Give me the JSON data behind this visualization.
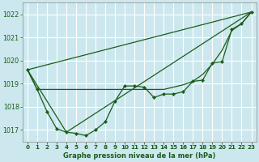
{
  "background_color": "#cce8ee",
  "grid_color": "#ffffff",
  "line_color": "#1a5c1a",
  "title": "Graphe pression niveau de la mer (hPa)",
  "xlim": [
    -0.5,
    23.5
  ],
  "ylim": [
    1016.5,
    1022.5
  ],
  "yticks": [
    1017,
    1018,
    1019,
    1020,
    1021,
    1022
  ],
  "xticks": [
    0,
    1,
    2,
    3,
    4,
    5,
    6,
    7,
    8,
    9,
    10,
    11,
    12,
    13,
    14,
    15,
    16,
    17,
    18,
    19,
    20,
    21,
    22,
    23
  ],
  "series1_x": [
    0,
    1,
    2,
    3,
    4,
    5,
    6,
    7,
    8,
    9,
    10,
    11,
    12,
    13,
    14,
    15,
    16,
    17,
    18,
    19,
    20,
    21,
    22,
    23
  ],
  "series1_y": [
    1019.6,
    1018.75,
    1017.8,
    1017.05,
    1016.9,
    1016.85,
    1016.75,
    1017.0,
    1017.35,
    1018.25,
    1018.9,
    1018.9,
    1018.85,
    1018.4,
    1018.55,
    1018.55,
    1018.65,
    1019.1,
    1019.15,
    1019.9,
    1019.95,
    1021.35,
    1021.6,
    1022.1
  ],
  "series2_x": [
    0,
    1,
    2,
    3,
    4,
    5,
    6,
    7,
    8,
    9,
    10,
    11,
    12,
    13,
    14,
    15,
    16,
    17,
    18,
    19,
    20,
    21,
    22,
    23
  ],
  "series2_y": [
    1019.6,
    1018.75,
    1018.75,
    1018.75,
    1018.75,
    1018.75,
    1018.75,
    1018.75,
    1018.75,
    1018.75,
    1018.75,
    1018.75,
    1018.75,
    1018.75,
    1018.75,
    1018.85,
    1018.95,
    1019.1,
    1019.4,
    1019.85,
    1020.45,
    1021.3,
    1021.6,
    1022.1
  ],
  "line3_x": [
    0,
    23
  ],
  "line3_y": [
    1019.6,
    1022.1
  ],
  "line4_x": [
    0,
    4,
    23
  ],
  "line4_y": [
    1019.6,
    1016.9,
    1022.1
  ]
}
